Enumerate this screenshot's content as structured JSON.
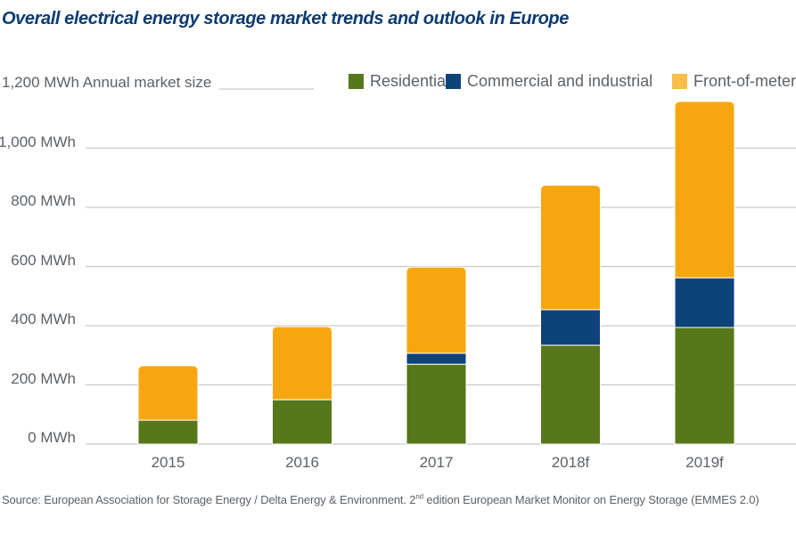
{
  "chart_data": {
    "type": "bar",
    "stacked": true,
    "title": "Overall electrical energy storage market trends and outlook in Europe",
    "ylabel": "Annual market size",
    "xlabel": "",
    "unit": "MWh",
    "ylim": [
      0,
      1200
    ],
    "yticks": [
      0,
      200,
      400,
      600,
      800,
      1000,
      1200
    ],
    "ytick_labels": [
      "0 MWh",
      "200 MWh",
      "400 MWh",
      "600 MWh",
      "800 MWh",
      "1,000 MWh",
      "1,200 MWh"
    ],
    "grid": true,
    "legend_position": "top-right",
    "categories": [
      "2015",
      "2016",
      "2017",
      "2018f",
      "2019f"
    ],
    "series": [
      {
        "name": "Residential",
        "color": "#56771a",
        "values": [
          81,
          150,
          270,
          334,
          394
        ]
      },
      {
        "name": "Commercial and industrial",
        "color": "#0e437a",
        "values": [
          0,
          0,
          37,
          120,
          168
        ]
      },
      {
        "name": "Front-of-meter",
        "color": "#f6a70f",
        "values": [
          184,
          247,
          291,
          421,
          596
        ]
      }
    ]
  },
  "header": {
    "title": "Overall electrical energy storage market trends and outlook in Europe",
    "axis_title": "Annual market size"
  },
  "legend": [
    {
      "label": "Residential",
      "color": "#56771a"
    },
    {
      "label": "Commercial and industrial",
      "color": "#0e437a"
    },
    {
      "label": "Front-of-meter",
      "color": "#f9bd48"
    }
  ],
  "footer": {
    "source_pre": "Source: European Association for Storage Energy / Delta Energy & Environment. 2",
    "source_sup": "nd",
    "source_post": " edition European Market Monitor on Energy Storage (EMMES 2.0)"
  },
  "colors": {
    "title": "#0c3b73",
    "text": "#5a6269",
    "grid": "#c4c9ce"
  }
}
